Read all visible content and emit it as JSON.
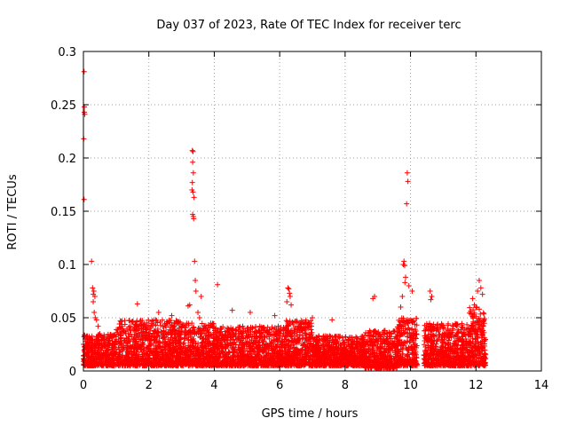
{
  "chart_data": {
    "type": "scatter",
    "title": "Day 037 of 2023, Rate Of TEC Index for receiver terc",
    "xlabel": "GPS time / hours",
    "ylabel": "ROTI / TECUs",
    "xlim": [
      0,
      14
    ],
    "ylim": [
      0,
      0.3
    ],
    "xticks": [
      0,
      2,
      4,
      6,
      8,
      10,
      12,
      14
    ],
    "yticks": [
      0,
      0.05,
      0.1,
      0.15,
      0.2,
      0.25,
      0.3
    ],
    "xtick_labels": [
      "0",
      "2",
      "4",
      "6",
      "8",
      "10",
      "12",
      "14"
    ],
    "ytick_labels": [
      "0",
      "0.05",
      "0.1",
      "0.15",
      "0.2",
      "0.25",
      "0.3"
    ],
    "grid": true,
    "marker": "+",
    "series": [
      {
        "name": "ROTI",
        "color": "#ff0000",
        "points": [
          [
            0.02,
            0.281
          ],
          [
            0.03,
            0.248
          ],
          [
            0.03,
            0.243
          ],
          [
            0.04,
            0.241
          ],
          [
            0.01,
            0.218
          ],
          [
            0.02,
            0.161
          ],
          [
            0.0,
            0.025
          ],
          [
            0.05,
            0.03
          ],
          [
            0.08,
            0.022
          ],
          [
            0.1,
            0.018
          ],
          [
            0.12,
            0.015
          ],
          [
            0.25,
            0.103
          ],
          [
            0.28,
            0.078
          ],
          [
            0.3,
            0.072
          ],
          [
            0.32,
            0.075
          ],
          [
            0.35,
            0.07
          ],
          [
            0.3,
            0.065
          ],
          [
            0.33,
            0.055
          ],
          [
            0.36,
            0.05
          ],
          [
            0.4,
            0.048
          ],
          [
            0.45,
            0.042
          ],
          [
            0.5,
            0.035
          ],
          [
            3.33,
            0.207
          ],
          [
            3.35,
            0.206
          ],
          [
            3.34,
            0.196
          ],
          [
            3.36,
            0.186
          ],
          [
            3.33,
            0.177
          ],
          [
            3.32,
            0.17
          ],
          [
            3.35,
            0.168
          ],
          [
            3.38,
            0.163
          ],
          [
            3.34,
            0.147
          ],
          [
            3.37,
            0.143
          ],
          [
            3.36,
            0.145
          ],
          [
            3.4,
            0.103
          ],
          [
            3.42,
            0.085
          ],
          [
            3.44,
            0.075
          ],
          [
            3.6,
            0.07
          ],
          [
            3.5,
            0.055
          ],
          [
            3.55,
            0.05
          ],
          [
            4.1,
            0.081
          ],
          [
            9.8,
            0.103
          ],
          [
            9.82,
            0.099
          ],
          [
            9.78,
            0.1
          ],
          [
            9.9,
            0.186
          ],
          [
            9.92,
            0.178
          ],
          [
            9.88,
            0.157
          ],
          [
            9.85,
            0.088
          ],
          [
            9.83,
            0.083
          ],
          [
            9.95,
            0.08
          ],
          [
            10.05,
            0.075
          ],
          [
            9.75,
            0.07
          ],
          [
            9.7,
            0.06
          ],
          [
            6.25,
            0.078
          ],
          [
            6.28,
            0.077
          ],
          [
            6.3,
            0.073
          ],
          [
            6.32,
            0.07
          ],
          [
            6.22,
            0.065
          ],
          [
            6.35,
            0.062
          ],
          [
            8.9,
            0.07
          ],
          [
            8.85,
            0.068
          ],
          [
            10.6,
            0.075
          ],
          [
            10.65,
            0.07
          ],
          [
            10.62,
            0.067
          ],
          [
            11.9,
            0.068
          ],
          [
            12.05,
            0.075
          ],
          [
            12.1,
            0.085
          ],
          [
            12.15,
            0.078
          ],
          [
            12.2,
            0.072
          ],
          [
            11.95,
            0.062
          ],
          [
            12.0,
            0.06
          ],
          [
            12.1,
            0.058
          ],
          [
            1.65,
            0.063
          ],
          [
            4.55,
            0.057
          ],
          [
            5.1,
            0.055
          ],
          [
            5.85,
            0.052
          ],
          [
            7.0,
            0.05
          ],
          [
            2.3,
            0.055
          ],
          [
            2.7,
            0.052
          ],
          [
            3.2,
            0.061
          ],
          [
            3.25,
            0.062
          ],
          [
            7.6,
            0.048
          ]
        ],
        "bands": [
          {
            "x_range": [
              0.0,
              1.0
            ],
            "y_range": [
              0.005,
              0.035
            ]
          },
          {
            "x_range": [
              1.0,
              3.0
            ],
            "y_range": [
              0.005,
              0.048
            ]
          },
          {
            "x_range": [
              3.0,
              4.0
            ],
            "y_range": [
              0.005,
              0.045
            ]
          },
          {
            "x_range": [
              4.0,
              6.2
            ],
            "y_range": [
              0.005,
              0.042
            ]
          },
          {
            "x_range": [
              6.2,
              7.0
            ],
            "y_range": [
              0.005,
              0.048
            ]
          },
          {
            "x_range": [
              7.0,
              8.6
            ],
            "y_range": [
              0.005,
              0.033
            ]
          },
          {
            "x_range": [
              8.6,
              9.6
            ],
            "y_range": [
              0.003,
              0.038
            ]
          },
          {
            "x_range": [
              9.6,
              10.2
            ],
            "y_range": [
              0.005,
              0.05
            ]
          },
          {
            "x_range": [
              10.4,
              11.8
            ],
            "y_range": [
              0.005,
              0.045
            ]
          },
          {
            "x_range": [
              11.8,
              12.3
            ],
            "y_range": [
              0.005,
              0.06
            ]
          }
        ]
      }
    ]
  }
}
